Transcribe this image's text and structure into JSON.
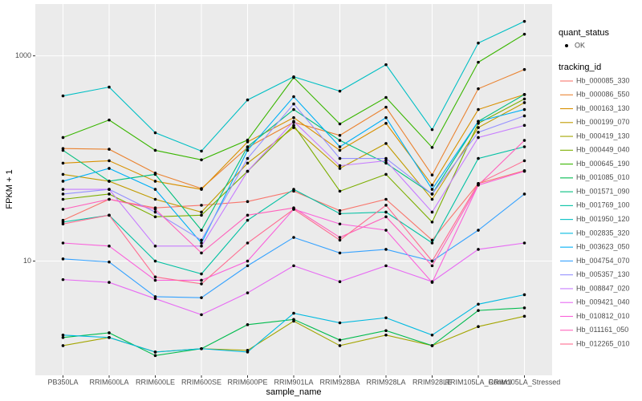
{
  "chart_data": {
    "type": "line",
    "x_label": "sample_name",
    "y_label": "FPKM + 1",
    "log_scale": true,
    "grid": true,
    "categories": [
      "PB350LA",
      "RRIM600LA",
      "RRIM600LE",
      "RRIM600SE",
      "RRIM600PE",
      "RRIM901LA",
      "RRIM928BA",
      "RRIM928LA",
      "RRIM928LE",
      "RRIM105LA_Control",
      "RRIM105LA_Stressed"
    ],
    "ylim": [
      0.77,
      3200
    ],
    "yticks": [
      10,
      1000
    ],
    "shape_legend": {
      "title": "quant_status",
      "items": [
        "OK"
      ]
    },
    "color_legend_title": "tracking_id",
    "series": [
      {
        "name": "Hb_000085_330",
        "color": "#F8766D",
        "values": [
          25,
          40,
          33,
          35,
          38,
          48,
          31,
          40,
          16,
          57,
          76
        ]
      },
      {
        "name": "Hb_000086_550",
        "color": "#EA8331",
        "values": [
          125,
          123,
          72,
          51,
          128,
          225,
          168,
          316,
          69,
          478,
          736
        ]
      },
      {
        "name": "Hb_000163_130",
        "color": "#D89000",
        "values": [
          90,
          95,
          60,
          50,
          145,
          250,
          120,
          220,
          55,
          300,
          420
        ]
      },
      {
        "name": "Hb_000199_070",
        "color": "#C09B00",
        "values": [
          70,
          60,
          40,
          30,
          90,
          200,
          80,
          140,
          40,
          200,
          350
        ]
      },
      {
        "name": "Hb_000419_130",
        "color": "#A3A500",
        "values": [
          1.5,
          1.8,
          1.3,
          1.4,
          1.35,
          2.6,
          1.5,
          1.9,
          1.5,
          2.3,
          2.9
        ]
      },
      {
        "name": "Hb_000449_040",
        "color": "#7CAE00",
        "values": [
          40,
          45,
          27,
          28,
          75,
          210,
          48,
          70,
          24,
          220,
          380
        ]
      },
      {
        "name": "Hb_000645_190",
        "color": "#39B600",
        "values": [
          160,
          237,
          120,
          97,
          151,
          615,
          217,
          393,
          128,
          866,
          1625
        ]
      },
      {
        "name": "Hb_001085_010",
        "color": "#00BB4E",
        "values": [
          1.8,
          2.0,
          1.2,
          1.4,
          2.4,
          2.7,
          1.7,
          2.1,
          1.5,
          3.3,
          3.5
        ]
      },
      {
        "name": "Hb_001571_090",
        "color": "#00BF7D",
        "values": [
          120,
          60,
          70,
          20,
          130,
          300,
          150,
          90,
          45,
          230,
          420
        ]
      },
      {
        "name": "Hb_001769_100",
        "color": "#00C1A3",
        "values": [
          24,
          28,
          10,
          7.5,
          25,
          50,
          29,
          30,
          15,
          100,
          130
        ]
      },
      {
        "name": "Hb_001950_120",
        "color": "#00BFC4",
        "values": [
          407,
          496,
          178,
          118,
          372,
          625,
          453,
          820,
          191,
          1333,
          2167
        ]
      },
      {
        "name": "Hb_002835_320",
        "color": "#00BAE0",
        "values": [
          1.9,
          1.8,
          1.3,
          1.4,
          1.3,
          3.1,
          2.5,
          2.8,
          1.9,
          3.8,
          4.7
        ]
      },
      {
        "name": "Hb_003623_050",
        "color": "#00B0F6",
        "values": [
          60,
          80,
          50,
          15,
          120,
          400,
          130,
          250,
          50,
          230,
          300
        ]
      },
      {
        "name": "Hb_004754_070",
        "color": "#35A2FF",
        "values": [
          10.5,
          9.8,
          4.5,
          4.4,
          9,
          17,
          12,
          13,
          10,
          20,
          45
        ]
      },
      {
        "name": "Hb_005357_130",
        "color": "#9590FF",
        "values": [
          45,
          50,
          30,
          16,
          100,
          340,
          100,
          100,
          45,
          180,
          260
        ]
      },
      {
        "name": "Hb_008847_020",
        "color": "#C77CFF",
        "values": [
          50,
          50,
          14,
          14,
          75,
          230,
          85,
          95,
          30,
          160,
          210
        ]
      },
      {
        "name": "Hb_009421_040",
        "color": "#E76BF3",
        "values": [
          6.6,
          6.2,
          4.3,
          3.0,
          4.9,
          9,
          6.3,
          9,
          6.3,
          13,
          15
        ]
      },
      {
        "name": "Hb_010812_010",
        "color": "#FA62DB",
        "values": [
          15,
          14,
          6.5,
          6.5,
          10,
          32,
          23,
          20,
          6.2,
          55,
          75
        ]
      },
      {
        "name": "Hb_011161_050",
        "color": "#FF62BC",
        "values": [
          32,
          40,
          32,
          12,
          28,
          33,
          17,
          27,
          9,
          55,
          150
        ]
      },
      {
        "name": "Hb_012265_010",
        "color": "#FF6C91",
        "values": [
          23,
          28,
          7,
          6,
          15,
          32,
          16,
          35,
          10,
          57,
          95
        ]
      }
    ]
  }
}
